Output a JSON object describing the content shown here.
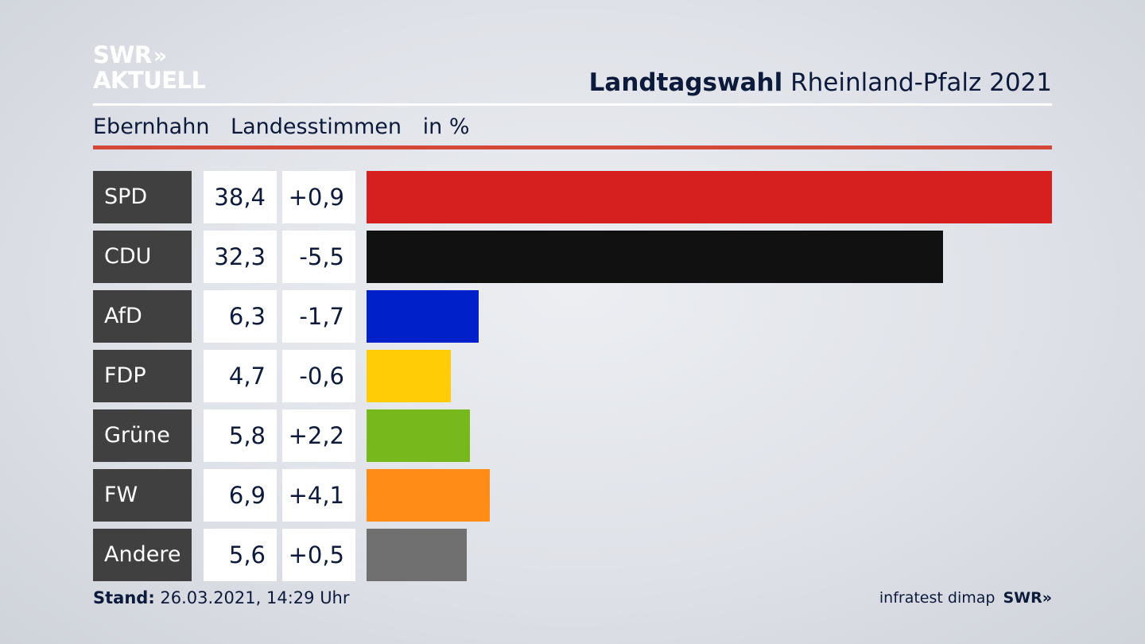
{
  "header": {
    "logo_line1": "SWR",
    "logo_arrows": "»",
    "logo_line2": "AKTUELL",
    "title_bold": "Landtagswahl",
    "title_rest": "Rheinland-Pfalz 2021"
  },
  "subheader": {
    "location": "Ebernhahn",
    "vote_type": "Landesstimmen",
    "unit": "in %"
  },
  "colors": {
    "accent_rule": "#d4483a",
    "label_box": "#404040"
  },
  "chart_data": {
    "type": "bar",
    "orientation": "horizontal",
    "title": "Landtagswahl Rheinland-Pfalz 2021",
    "subtitle": "Ebernhahn Landesstimmen in %",
    "categories": [
      "SPD",
      "CDU",
      "AfD",
      "FDP",
      "Grüne",
      "FW",
      "Andere"
    ],
    "values": [
      38.4,
      32.3,
      6.3,
      4.7,
      5.8,
      6.9,
      5.6
    ],
    "value_labels": [
      "38,4",
      "32,3",
      "6,3",
      "4,7",
      "5,8",
      "6,9",
      "5,6"
    ],
    "change_labels": [
      "+0,9",
      "-5,5",
      "-1,7",
      "-0,6",
      "+2,2",
      "+4,1",
      "+0,5"
    ],
    "changes": [
      0.9,
      -5.5,
      -1.7,
      -0.6,
      2.2,
      4.1,
      0.5
    ],
    "colors": [
      "#d62020",
      "#111111",
      "#0021c9",
      "#ffcc05",
      "#77b91c",
      "#ff8c16",
      "#707070"
    ],
    "xlim": [
      0,
      38.4
    ]
  },
  "footer": {
    "stand_label": "Stand:",
    "stand_value": "26.03.2021, 14:29 Uhr",
    "source": "infratest dimap",
    "brand": "SWR",
    "brand_arrows": "»"
  }
}
